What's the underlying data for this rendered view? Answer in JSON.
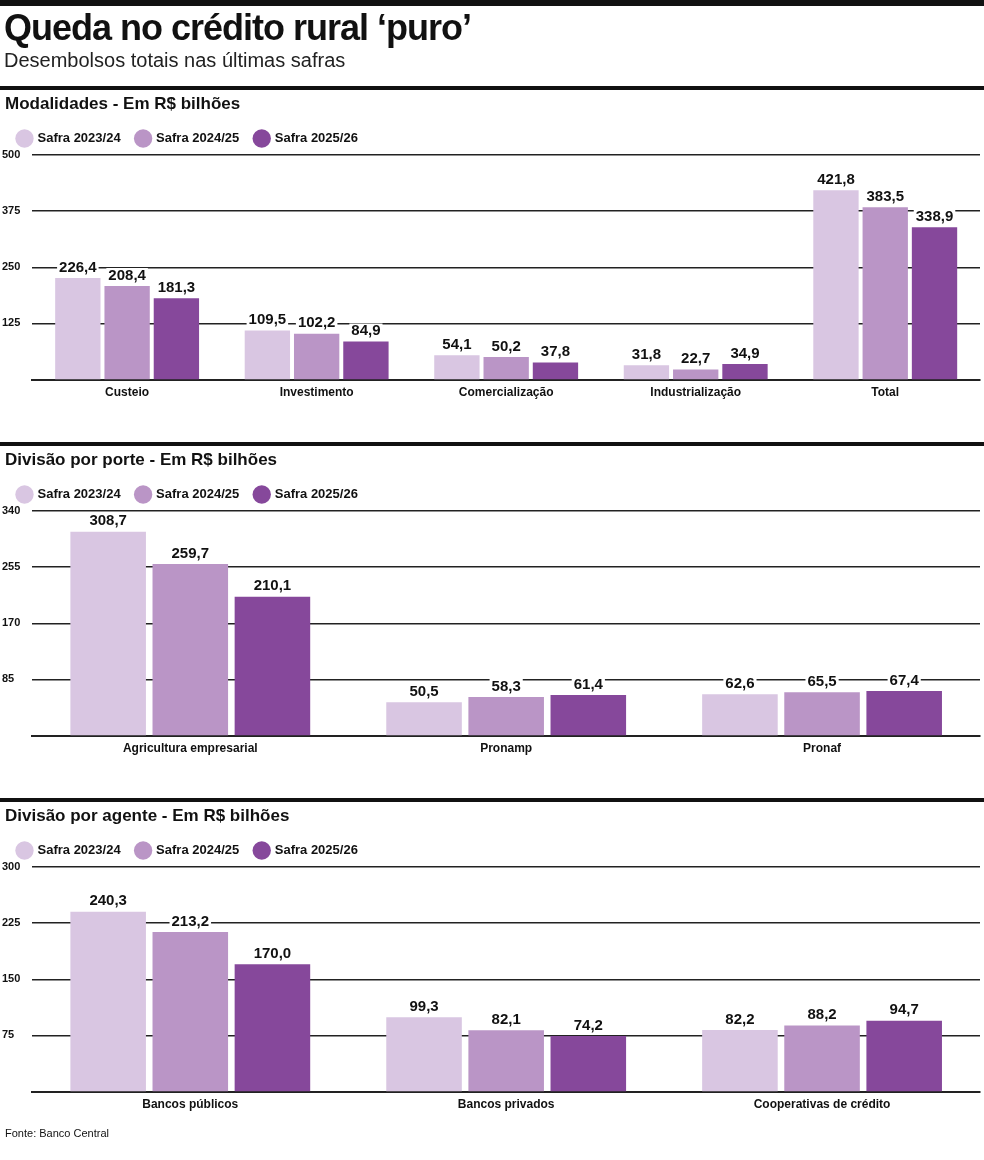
{
  "chart_data": [
    {
      "type": "other",
      "title": "Queda no crédito rural ‘puro’",
      "subtitle": "Desembolsos totais nas últimas safras"
    },
    {
      "type": "bar",
      "title": "Modalidades - Em R$ bilhões",
      "categories": [
        "Custeio",
        "Investimento",
        "Comercialização",
        "Industrialização",
        "Total"
      ],
      "series": [
        {
          "name": "Safra 2023/24",
          "color": "#d9c6e2",
          "values": [
            226.4,
            109.5,
            54.1,
            31.8,
            421.8
          ],
          "value_labels": [
            "226,4",
            "109,5",
            "54,1",
            "31,8",
            "421,8"
          ]
        },
        {
          "name": "Safra 2024/25",
          "color": "#ba95c6",
          "values": [
            208.4,
            102.2,
            50.2,
            22.7,
            383.5
          ],
          "value_labels": [
            "208,4",
            "102,2",
            "50,2",
            "22,7",
            "383,5"
          ]
        },
        {
          "name": "Safra 2025/26",
          "color": "#86489b",
          "values": [
            181.3,
            84.9,
            37.8,
            34.9,
            338.9
          ],
          "value_labels": [
            "181,3",
            "84,9",
            "37,8",
            "34,9",
            "338,9"
          ]
        }
      ],
      "ylim": [
        0,
        500
      ],
      "yticks": [
        125,
        250,
        375,
        500
      ],
      "grid": "y",
      "legend": "top left"
    },
    {
      "type": "bar",
      "title": "Divisão por porte - Em R$ bilhões",
      "categories": [
        "Agricultura empresarial",
        "Pronamp",
        "Pronaf"
      ],
      "series": [
        {
          "name": "Safra 2023/24",
          "color": "#d9c6e2",
          "values": [
            308.7,
            50.5,
            62.6
          ],
          "value_labels": [
            "308,7",
            "50,5",
            "62,6"
          ]
        },
        {
          "name": "Safra 2024/25",
          "color": "#ba95c6",
          "values": [
            259.7,
            58.3,
            65.5
          ],
          "value_labels": [
            "259,7",
            "58,3",
            "65,5"
          ]
        },
        {
          "name": "Safra 2025/26",
          "color": "#86489b",
          "values": [
            210.1,
            61.4,
            67.4
          ],
          "value_labels": [
            "210,1",
            "61,4",
            "67,4"
          ]
        }
      ],
      "ylim": [
        0,
        340
      ],
      "yticks": [
        85,
        170,
        255,
        340
      ],
      "grid": "y",
      "legend": "top left"
    },
    {
      "type": "bar",
      "title": "Divisão por agente - Em R$ bilhões",
      "categories": [
        "Bancos públicos",
        "Bancos privados",
        "Cooperativas de crédito"
      ],
      "series": [
        {
          "name": "Safra 2023/24",
          "color": "#d9c6e2",
          "values": [
            240.3,
            99.3,
            82.2
          ],
          "value_labels": [
            "240,3",
            "99,3",
            "82,2"
          ]
        },
        {
          "name": "Safra 2024/25",
          "color": "#ba95c6",
          "values": [
            213.2,
            82.1,
            88.2
          ],
          "value_labels": [
            "213,2",
            "82,1",
            "88,2"
          ]
        },
        {
          "name": "Safra 2025/26",
          "color": "#86489b",
          "values": [
            170.0,
            74.2,
            94.7
          ],
          "value_labels": [
            "170,0",
            "74,2",
            "94,7"
          ]
        }
      ],
      "ylim": [
        0,
        300
      ],
      "yticks": [
        75,
        150,
        225,
        300
      ],
      "grid": "y",
      "legend": "top left",
      "annotations": [
        "Fonte: Banco Central"
      ]
    }
  ]
}
